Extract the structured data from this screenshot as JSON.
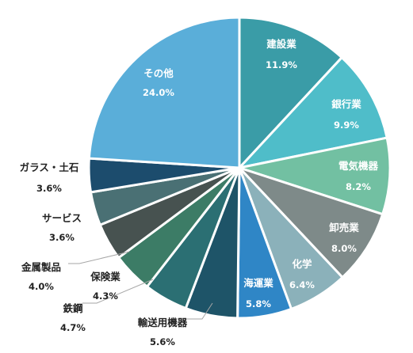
{
  "chart_data": {
    "type": "pie",
    "title": "",
    "slices": [
      {
        "label": "建設業",
        "value_label": "11.9%",
        "value": 11.9,
        "color": "#3a9ca7",
        "label_color": "#ffffff"
      },
      {
        "label": "銀行業",
        "value_label": "9.9%",
        "value": 9.9,
        "color": "#4fbdc9",
        "label_color": "#ffffff"
      },
      {
        "label": "電気機器",
        "value_label": "8.2%",
        "value": 8.2,
        "color": "#72c0a2",
        "label_color": "#ffffff"
      },
      {
        "label": "卸売業",
        "value_label": "8.0%",
        "value": 8.0,
        "color": "#7e8a89",
        "label_color": "#ffffff"
      },
      {
        "label": "化学",
        "value_label": "6.4%",
        "value": 6.4,
        "color": "#8bb1ba",
        "label_color": "#ffffff"
      },
      {
        "label": "海運業",
        "value_label": "5.8%",
        "value": 5.8,
        "color": "#2f86c6",
        "label_color": "#ffffff"
      },
      {
        "label": "輸送用機器",
        "value_label": "5.6%",
        "value": 5.6,
        "color": "#1e5468",
        "label_color": "#222222"
      },
      {
        "label": "鉄鋼",
        "value_label": "4.7%",
        "value": 4.7,
        "color": "#2b6f73",
        "label_color": "#222222"
      },
      {
        "label": "保険業",
        "value_label": "4.3%",
        "value": 4.3,
        "color": "#3c7c66",
        "label_color": "#222222"
      },
      {
        "label": "金属製品",
        "value_label": "4.0%",
        "value": 4.0,
        "color": "#475250",
        "label_color": "#222222"
      },
      {
        "label": "サービス",
        "value_label": "3.6%",
        "value": 3.6,
        "color": "#4a7074",
        "label_color": "#222222"
      },
      {
        "label": "ガラス・土石",
        "value_label": "3.6%",
        "value": 3.6,
        "color": "#1c4c6d",
        "label_color": "#222222"
      },
      {
        "label": "その他",
        "value_label": "24.0%",
        "value": 24.0,
        "color": "#5aaed9",
        "label_color": "#ffffff"
      }
    ],
    "start_angle": "12 o'clock",
    "direction": "clockwise",
    "legend": "none"
  }
}
